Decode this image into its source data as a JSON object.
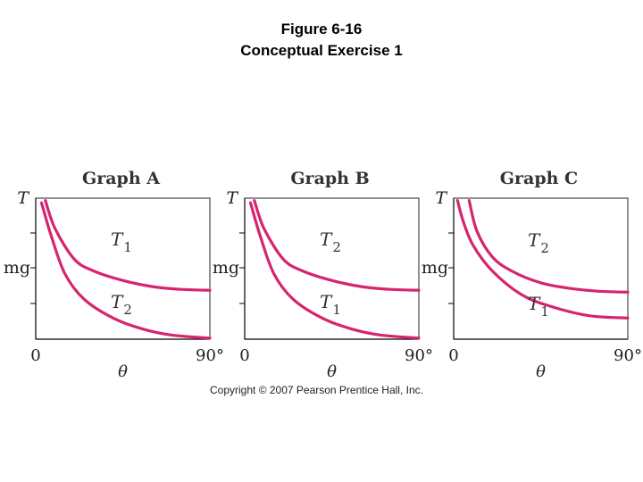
{
  "figure": {
    "title_line1": "Figure 6-16",
    "title_line2": "Conceptual Exercise 1",
    "copyright": "Copyright © 2007 Pearson Prentice Hall, Inc."
  },
  "colors": {
    "curve": "#d6246e",
    "axis": "#000000"
  },
  "chart_data": [
    {
      "type": "line",
      "title": "Graph A",
      "ylabel": "T",
      "xlabel": "θ",
      "xtick_start": "0",
      "xtick_end": "90°",
      "ytick_label": "mg",
      "xlim": [
        0,
        90
      ],
      "ylim": [
        0,
        3
      ],
      "series": [
        {
          "name": "T1",
          "label_main": "T",
          "label_sub": "1",
          "x": [
            5,
            10,
            20,
            30,
            45,
            60,
            75,
            90
          ],
          "y": [
            2.95,
            2.35,
            1.7,
            1.45,
            1.25,
            1.12,
            1.06,
            1.04
          ]
        },
        {
          "name": "T2",
          "label_main": "T",
          "label_sub": "2",
          "x": [
            3,
            8,
            15,
            25,
            40,
            55,
            70,
            90
          ],
          "y": [
            2.9,
            2.2,
            1.4,
            0.85,
            0.45,
            0.22,
            0.09,
            0.02
          ]
        }
      ]
    },
    {
      "type": "line",
      "title": "Graph B",
      "ylabel": "T",
      "xlabel": "θ",
      "xtick_start": "0",
      "xtick_end": "90°",
      "ytick_label": "mg",
      "xlim": [
        0,
        90
      ],
      "ylim": [
        0,
        3
      ],
      "series": [
        {
          "name": "T2",
          "label_main": "T",
          "label_sub": "2",
          "x": [
            5,
            10,
            20,
            30,
            45,
            60,
            75,
            90
          ],
          "y": [
            2.95,
            2.35,
            1.7,
            1.45,
            1.25,
            1.12,
            1.06,
            1.04
          ]
        },
        {
          "name": "T1",
          "label_main": "T",
          "label_sub": "1",
          "x": [
            3,
            8,
            15,
            25,
            40,
            55,
            70,
            90
          ],
          "y": [
            2.9,
            2.2,
            1.4,
            0.85,
            0.45,
            0.22,
            0.09,
            0.02
          ]
        }
      ]
    },
    {
      "type": "line",
      "title": "Graph C",
      "ylabel": "T",
      "xlabel": "θ",
      "xtick_start": "0",
      "xtick_end": "90°",
      "ytick_label": "mg",
      "xlim": [
        0,
        90
      ],
      "ylim": [
        0,
        3
      ],
      "series": [
        {
          "name": "T2",
          "label_main": "T",
          "label_sub": "2",
          "x": [
            8,
            12,
            20,
            30,
            45,
            60,
            75,
            90
          ],
          "y": [
            2.95,
            2.3,
            1.75,
            1.45,
            1.2,
            1.08,
            1.02,
            1.0
          ]
        },
        {
          "name": "T1",
          "label_main": "T",
          "label_sub": "1",
          "x": [
            2,
            5,
            10,
            20,
            35,
            50,
            70,
            90
          ],
          "y": [
            2.95,
            2.5,
            2.0,
            1.45,
            0.95,
            0.7,
            0.5,
            0.45
          ]
        }
      ]
    }
  ]
}
